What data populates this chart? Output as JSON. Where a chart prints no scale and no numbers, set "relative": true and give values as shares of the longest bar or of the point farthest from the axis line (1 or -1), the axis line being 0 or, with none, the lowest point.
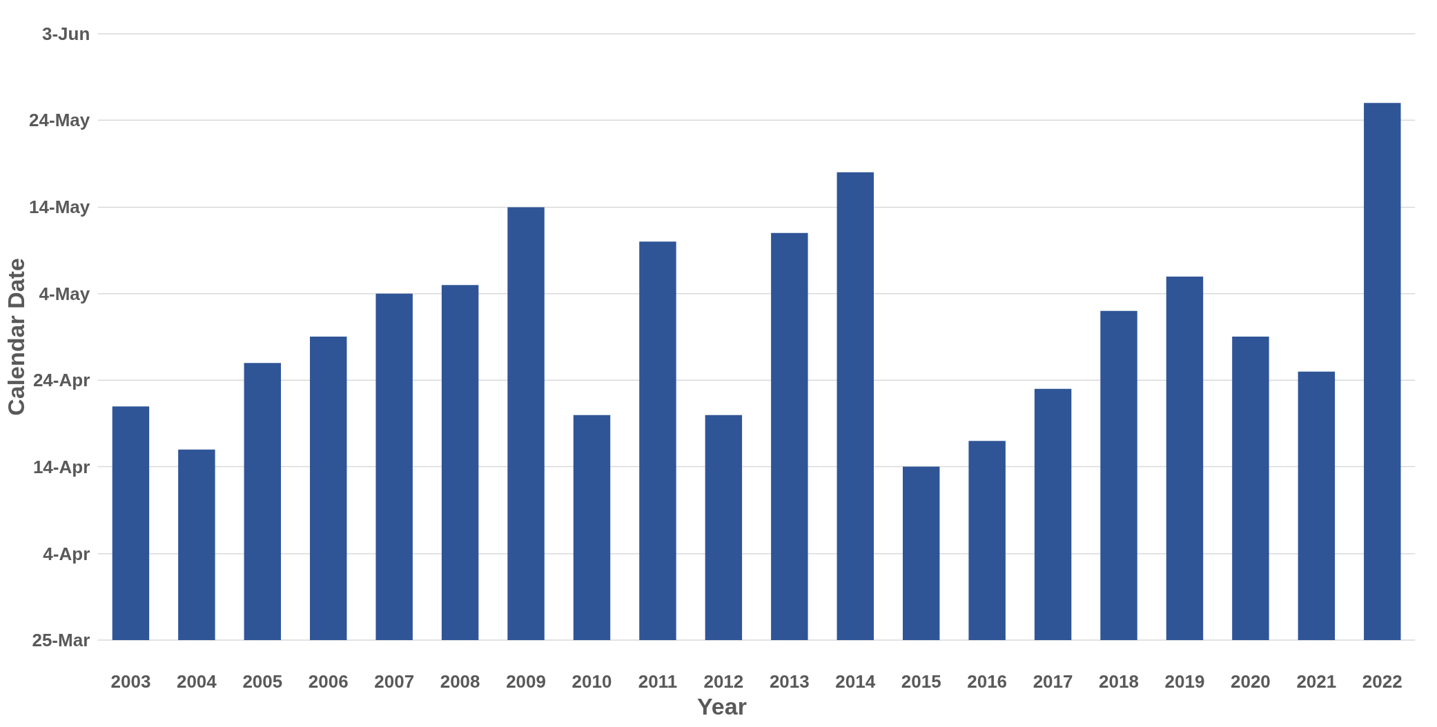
{
  "chart_data": {
    "type": "bar",
    "xlabel": "Year",
    "ylabel": "Calendar Date",
    "relative": true,
    "categories": [
      "2003",
      "2004",
      "2005",
      "2006",
      "2007",
      "2008",
      "2009",
      "2010",
      "2011",
      "2012",
      "2013",
      "2014",
      "2015",
      "2016",
      "2017",
      "2018",
      "2019",
      "2020",
      "2021",
      "2022"
    ],
    "values": [
      0.435,
      0.355,
      0.516,
      0.565,
      0.645,
      0.661,
      0.806,
      0.419,
      0.742,
      0.419,
      0.758,
      0.871,
      0.323,
      0.371,
      0.468,
      0.613,
      0.677,
      0.565,
      0.5,
      1
    ],
    "color": "#2f5597",
    "ref_lines": [
      {
        "axis": "y",
        "value": 0,
        "label": "25-Mar",
        "color": "#d9d9d9"
      },
      {
        "axis": "y",
        "value": 0.161,
        "label": "4-Apr",
        "color": "#d9d9d9"
      },
      {
        "axis": "y",
        "value": 0.323,
        "label": "14-Apr",
        "color": "#d9d9d9"
      },
      {
        "axis": "y",
        "value": 0.484,
        "label": "24-Apr",
        "color": "#d9d9d9"
      },
      {
        "axis": "y",
        "value": 0.645,
        "label": "4-May",
        "color": "#d9d9d9"
      },
      {
        "axis": "y",
        "value": 0.806,
        "label": "14-May",
        "color": "#d9d9d9"
      },
      {
        "axis": "y",
        "value": 0.968,
        "label": "24-May",
        "color": "#d9d9d9"
      },
      {
        "axis": "y",
        "value": 1.129,
        "label": "3-Jun",
        "color": "#d9d9d9"
      }
    ]
  }
}
